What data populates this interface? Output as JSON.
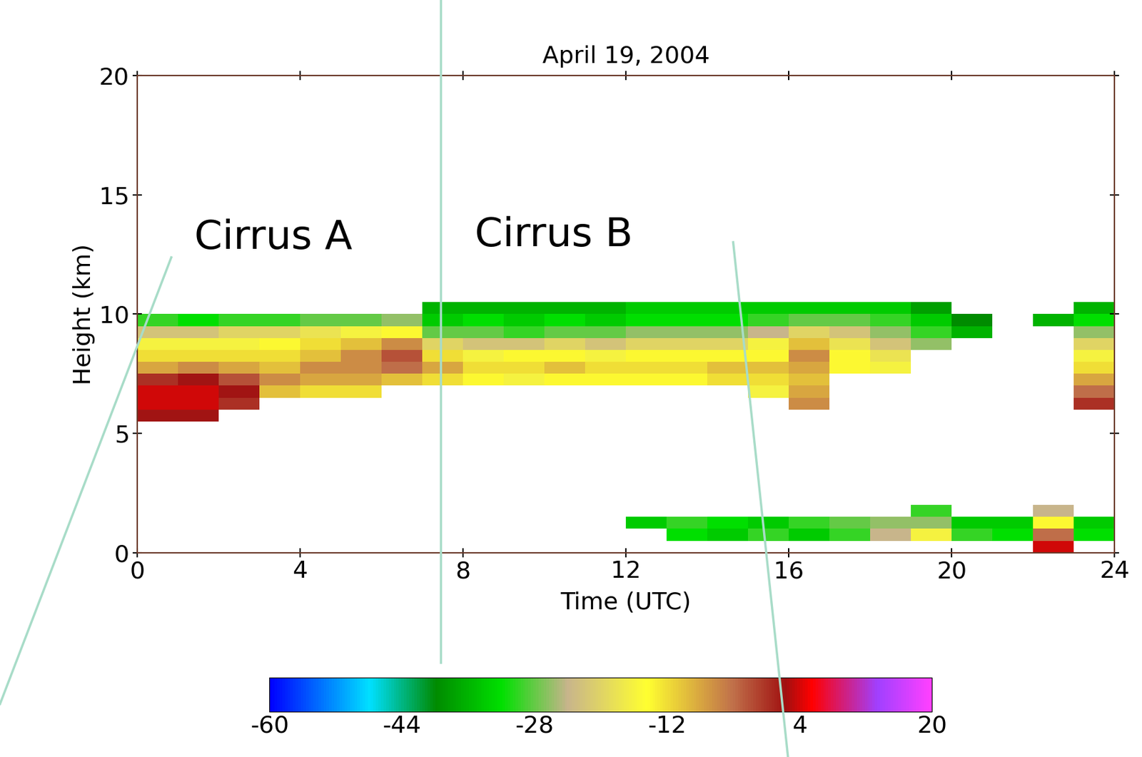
{
  "chart_data": {
    "type": "heatmap",
    "title": "April 19, 2004",
    "x_label": "Time (UTC)",
    "y_label": "Height (km)",
    "annotations": [
      "Cirrus A",
      "Cirrus B"
    ],
    "x": [
      0,
      1,
      2,
      3,
      4,
      5,
      6,
      7,
      8,
      9,
      10,
      11,
      12,
      13,
      14,
      15,
      16,
      17,
      18,
      19,
      20,
      21,
      22,
      23,
      24
    ],
    "y": [
      0,
      0.5,
      1,
      1.5,
      2,
      2.5,
      3,
      3.5,
      4,
      4.5,
      5,
      5.5,
      6,
      6.5,
      7,
      7.5,
      8,
      8.5,
      9,
      9.5,
      10,
      10.5,
      11
    ],
    "values": [
      [
        null,
        null,
        null,
        null,
        null,
        null,
        null,
        null,
        null,
        null,
        null,
        2,
        4,
        4,
        0,
        -8,
        -12,
        -16,
        -22,
        -30,
        null,
        null
      ],
      [
        null,
        null,
        null,
        null,
        null,
        null,
        null,
        null,
        null,
        null,
        null,
        2,
        4,
        4,
        2,
        -6,
        -12,
        -16,
        -22,
        -32,
        null,
        null
      ],
      [
        null,
        null,
        null,
        null,
        null,
        null,
        null,
        null,
        null,
        null,
        null,
        null,
        0,
        2,
        -2,
        -8,
        -12,
        -16,
        -20,
        -30,
        null,
        null
      ],
      [
        null,
        null,
        null,
        null,
        null,
        null,
        null,
        null,
        null,
        null,
        null,
        null,
        null,
        -10,
        -6,
        -10,
        -12,
        -14,
        -20,
        -30,
        null,
        null
      ],
      [
        null,
        null,
        null,
        null,
        null,
        null,
        null,
        null,
        null,
        null,
        null,
        null,
        null,
        -12,
        -8,
        -6,
        -10,
        -12,
        -18,
        -28,
        null,
        null
      ],
      [
        null,
        null,
        null,
        null,
        null,
        null,
        null,
        null,
        null,
        null,
        null,
        null,
        null,
        -12,
        -8,
        -6,
        -6,
        -10,
        -16,
        -28,
        null,
        null
      ],
      [
        null,
        null,
        null,
        null,
        null,
        null,
        null,
        null,
        null,
        null,
        null,
        null,
        null,
        null,
        -10,
        -4,
        -2,
        -6,
        -14,
        -26,
        null,
        null
      ],
      [
        null,
        null,
        null,
        null,
        null,
        null,
        null,
        null,
        null,
        null,
        null,
        null,
        null,
        null,
        -12,
        -8,
        -12,
        -20,
        -28,
        -34,
        -36,
        null
      ],
      [
        null,
        null,
        null,
        null,
        null,
        null,
        null,
        null,
        null,
        null,
        null,
        null,
        null,
        null,
        -14,
        -12,
        -16,
        -22,
        -28,
        -32,
        -36,
        null
      ],
      [
        null,
        null,
        null,
        null,
        null,
        null,
        null,
        null,
        null,
        null,
        null,
        null,
        null,
        null,
        -16,
        -12,
        -14,
        -22,
        -30,
        -34,
        -36,
        null
      ],
      [
        null,
        null,
        null,
        null,
        null,
        null,
        null,
        null,
        null,
        null,
        null,
        null,
        null,
        null,
        -14,
        -10,
        -14,
        -20,
        -28,
        -32,
        -36,
        null
      ],
      [
        null,
        null,
        null,
        null,
        null,
        null,
        null,
        null,
        null,
        null,
        null,
        null,
        null,
        null,
        -14,
        -12,
        -16,
        -22,
        -28,
        -34,
        -36,
        null
      ],
      [
        null,
        null,
        -34,
        null,
        null,
        null,
        null,
        null,
        null,
        null,
        null,
        null,
        null,
        null,
        -14,
        -12,
        -14,
        -20,
        -26,
        -32,
        -34,
        null
      ],
      [
        null,
        -32,
        -30,
        null,
        null,
        null,
        null,
        null,
        null,
        null,
        null,
        null,
        null,
        null,
        -14,
        -12,
        -14,
        -20,
        -26,
        -32,
        -34,
        null
      ],
      [
        null,
        -34,
        -32,
        null,
        null,
        null,
        null,
        null,
        null,
        null,
        null,
        null,
        null,
        null,
        -12,
        -10,
        -14,
        -20,
        -26,
        -32,
        -34,
        null
      ],
      [
        null,
        -30,
        -34,
        null,
        null,
        null,
        null,
        null,
        null,
        null,
        null,
        null,
        null,
        -16,
        -12,
        -10,
        -14,
        -16,
        -24,
        -30,
        -34,
        null
      ],
      [
        null,
        -34,
        -30,
        null,
        null,
        null,
        null,
        null,
        null,
        null,
        null,
        null,
        -6,
        -8,
        -10,
        -8,
        -6,
        -10,
        -20,
        -28,
        -34,
        null
      ],
      [
        null,
        -30,
        -28,
        null,
        null,
        null,
        null,
        null,
        null,
        null,
        null,
        null,
        null,
        null,
        null,
        -14,
        -14,
        -18,
        -22,
        -28,
        -34,
        null
      ],
      [
        null,
        -24,
        -26,
        null,
        null,
        null,
        null,
        null,
        null,
        null,
        null,
        null,
        null,
        null,
        null,
        -16,
        -18,
        -22,
        -26,
        -30,
        -34,
        null
      ],
      [
        null,
        -16,
        -26,
        -30,
        null,
        null,
        null,
        null,
        null,
        null,
        null,
        null,
        null,
        null,
        null,
        null,
        null,
        -26,
        -30,
        -34,
        -38,
        null
      ],
      [
        null,
        -30,
        -34,
        null,
        null,
        null,
        null,
        null,
        null,
        null,
        null,
        null,
        null,
        null,
        null,
        null,
        null,
        null,
        -36,
        -40,
        null,
        null
      ],
      [
        null,
        -32,
        -34,
        null,
        null,
        null,
        null,
        null,
        null,
        null,
        null,
        null,
        null,
        null,
        null,
        null,
        null,
        null,
        null,
        null,
        null,
        null
      ],
      [
        4,
        -4,
        -14,
        -24,
        null,
        null,
        null,
        null,
        null,
        null,
        null,
        null,
        null,
        null,
        null,
        null,
        null,
        null,
        null,
        -36,
        null,
        null
      ],
      [
        null,
        -32,
        -34,
        null,
        null,
        null,
        null,
        null,
        null,
        null,
        null,
        null,
        0,
        -4,
        -8,
        -12,
        -16,
        -20,
        -26,
        -32,
        -36,
        null
      ]
    ],
    "xlim": [
      0,
      24
    ],
    "xticks": [
      0,
      4,
      8,
      12,
      16,
      20,
      24
    ],
    "ylim": [
      0,
      20
    ],
    "yticks": [
      0,
      5,
      10,
      15,
      20
    ],
    "colorbar_range": [
      -60,
      20
    ],
    "colorbar_ticks": [
      -60,
      -44,
      -28,
      -12,
      4,
      20
    ]
  }
}
